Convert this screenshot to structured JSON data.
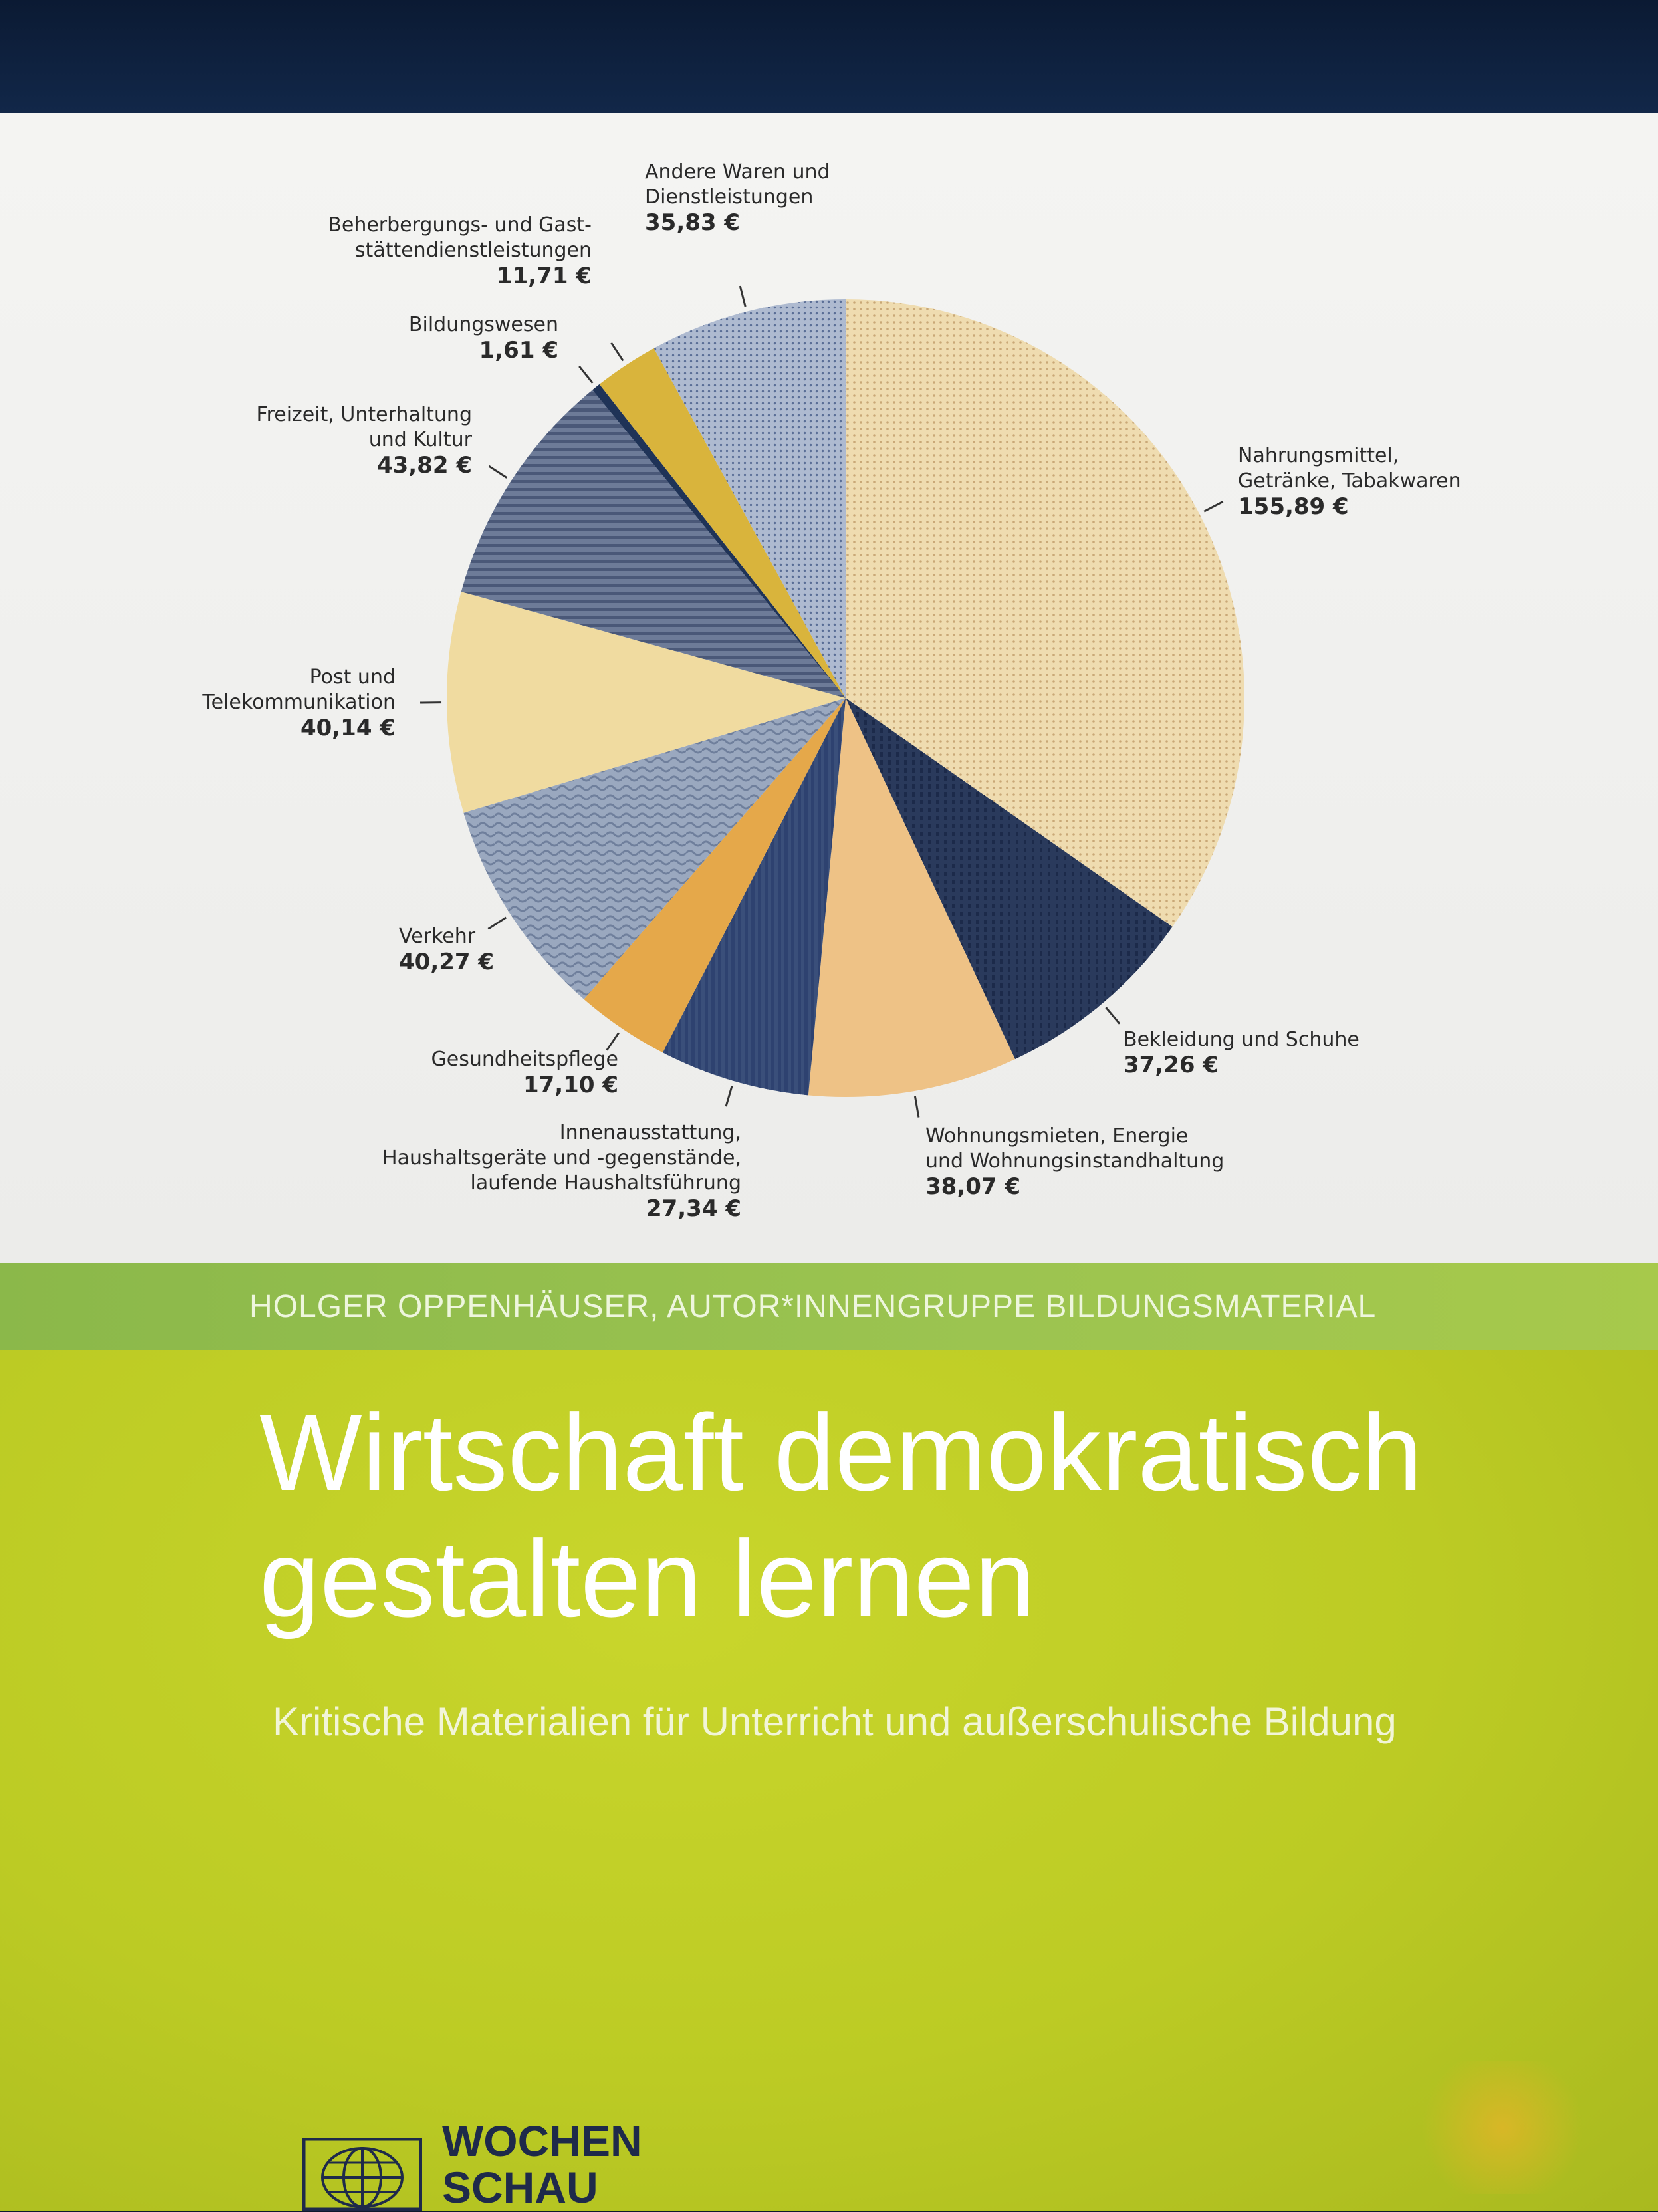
{
  "chart_data": {
    "type": "pie",
    "unit": "€",
    "slices": [
      {
        "label": "Nahrungsmittel, Getränke, Tabakwaren",
        "label_lines": [
          "Nahrungsmittel,",
          "Getränke, Tabakwaren"
        ],
        "value_text": "155,89 €",
        "value": 155.89,
        "color": "#efdcb0"
      },
      {
        "label": "Bekleidung und Schuhe",
        "label_lines": [
          "Bekleidung und Schuhe"
        ],
        "value_text": "37,26 €",
        "value": 37.26,
        "color": "#2a3a5c"
      },
      {
        "label": "Wohnungsmieten, Energie und Wohnungsinstandhaltung",
        "label_lines": [
          "Wohnungsmieten, Energie",
          "und Wohnungsinstandhaltung"
        ],
        "value_text": "38,07 €",
        "value": 38.07,
        "color": "#eec286"
      },
      {
        "label": "Innenausstattung, Haushaltsgeräte und -gegenstände, laufende Haushaltsführung",
        "label_lines": [
          "Innenausstattung,",
          "Haushaltsgeräte und -gegenstände,",
          "laufende Haushaltsführung"
        ],
        "value_text": "27,34 €",
        "value": 27.34,
        "color": "#3a4f7a"
      },
      {
        "label": "Gesundheitspflege",
        "label_lines": [
          "Gesundheitspflege"
        ],
        "value_text": "17,10 €",
        "value": 17.1,
        "color": "#e5a84a"
      },
      {
        "label": "Verkehr",
        "label_lines": [
          "Verkehr"
        ],
        "value_text": "40,27 €",
        "value": 40.27,
        "color": "#9aa8bf"
      },
      {
        "label": "Post und Telekommunikation",
        "label_lines": [
          "Post und",
          "Telekommunikation"
        ],
        "value_text": "40,14 €",
        "value": 40.14,
        "color": "#f0dba0"
      },
      {
        "label": "Freizeit, Unterhaltung und Kultur",
        "label_lines": [
          "Freizeit, Unterhaltung",
          "und Kultur"
        ],
        "value_text": "43,82 €",
        "value": 43.82,
        "color": "#6d7b98"
      },
      {
        "label": "Bildungswesen",
        "label_lines": [
          "Bildungswesen"
        ],
        "value_text": "1,61 €",
        "value": 1.61,
        "color": "#1f3357"
      },
      {
        "label": "Beherbergungs- und Gaststättendienstleistungen",
        "label_lines": [
          "Beherbergungs- und Gast-",
          "stättendienstleistungen"
        ],
        "value_text": "11,71 €",
        "value": 11.71,
        "color": "#d9b43c"
      },
      {
        "label": "Andere Waren und Dienstleistungen",
        "label_lines": [
          "Andere Waren und",
          "Dienstleistungen"
        ],
        "value_text": "35,83 €",
        "value": 35.83,
        "color": "#aebad0"
      }
    ]
  },
  "cover": {
    "author_line": "HOLGER OPPENHÄUSER, AUTOR*INNENGRUPPE BILDUNGSMATERIAL",
    "title_line1": "Wirtschaft demokratisch",
    "title_line2": "gestalten lernen",
    "subtitle": "Kritische Materialien für Unterricht und außerschulische Bildung",
    "publisher_line1": "WOCHEN",
    "publisher_line2": "SCHAU",
    "logo_icon": "globe-grid-icon"
  }
}
